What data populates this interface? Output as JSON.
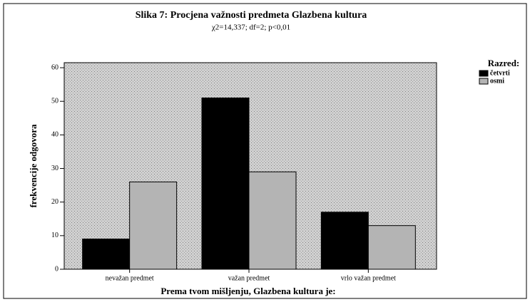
{
  "chart_data": {
    "type": "bar",
    "title": "Slika 7: Procjena važnosti predmeta Glazbena kultura",
    "subtitle": "χ2=14,337; df=2; p<0,01",
    "xlabel": "Prema tvom mišljenju, Glazbena kultura je:",
    "ylabel": "frekvencije odgovora",
    "legend_title": "Razred:",
    "categories": [
      "nevažan predmet",
      "važan predmet",
      "vrlo važan predmet"
    ],
    "series": [
      {
        "name": "četvrti",
        "color": "#000000",
        "values": [
          9,
          51,
          17
        ]
      },
      {
        "name": "osmi",
        "color": "#b4b4b4",
        "values": [
          26,
          29,
          13
        ]
      }
    ],
    "ylim": [
      0,
      61.5
    ],
    "yticks": [
      0,
      10,
      20,
      30,
      40,
      50,
      60
    ],
    "legend": "right"
  }
}
